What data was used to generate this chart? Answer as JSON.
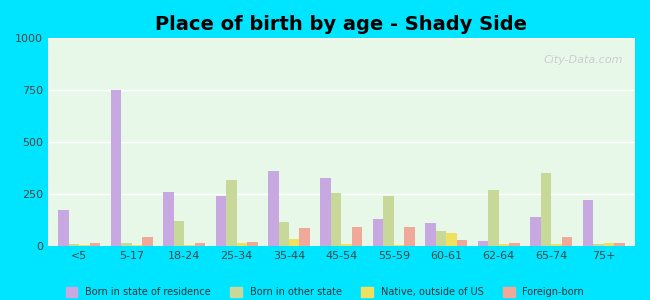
{
  "title": "Place of birth by age - Shady Side",
  "categories": [
    "<5",
    "5-17",
    "18-24",
    "25-34",
    "35-44",
    "45-54",
    "55-59",
    "60-61",
    "62-64",
    "65-74",
    "75+"
  ],
  "born_in_state": [
    175,
    750,
    260,
    240,
    360,
    330,
    130,
    110,
    25,
    140,
    220
  ],
  "born_other_state": [
    10,
    15,
    120,
    320,
    115,
    255,
    240,
    75,
    270,
    350,
    10
  ],
  "native_outside": [
    5,
    5,
    5,
    15,
    35,
    10,
    5,
    65,
    10,
    10,
    15
  ],
  "foreign_born": [
    15,
    45,
    15,
    20,
    85,
    90,
    90,
    30,
    15,
    45,
    15
  ],
  "colors": {
    "born_in_state": "#c8a8e0",
    "born_other_state": "#c8d898",
    "native_outside": "#f0e060",
    "foreign_born": "#f0a898"
  },
  "ylim": [
    0,
    1000
  ],
  "yticks": [
    0,
    250,
    500,
    750,
    1000
  ],
  "background_color": "#e8f8e8",
  "outer_background": "#00e5ff",
  "title_fontsize": 14,
  "legend_labels": [
    "Born in state of residence",
    "Born in other state",
    "Native, outside of US",
    "Foreign-born"
  ]
}
